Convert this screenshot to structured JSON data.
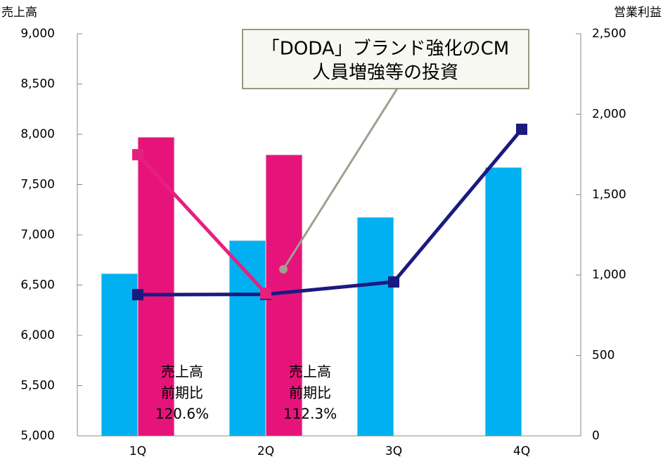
{
  "chart_data": {
    "type": "bar",
    "y_label": "売上高",
    "y2_label": "営業利益",
    "categories": [
      "1Q",
      "2Q",
      "3Q",
      "4Q"
    ],
    "series": [
      {
        "type": "bar",
        "color": "#00b0f0",
        "values": [
          6615,
          6944,
          7175,
          7671
        ]
      },
      {
        "type": "bar",
        "color": "#e6147a",
        "values": [
          7972,
          7797,
          null,
          null
        ]
      },
      {
        "type": "line",
        "axis": "y2",
        "color": "#1a1a80",
        "values": [
          878,
          880,
          957,
          1906
        ]
      },
      {
        "type": "line",
        "axis": "y2",
        "color": "#e6207f",
        "values": [
          1748,
          887,
          null,
          null
        ]
      }
    ],
    "ylim": [
      5000,
      9000
    ],
    "yticks": [
      {
        "value": 5000,
        "label": "5,000"
      },
      {
        "value": 5500,
        "label": "5,500"
      },
      {
        "value": 6000,
        "label": "6,000"
      },
      {
        "value": 6500,
        "label": "6,500"
      },
      {
        "value": 7000,
        "label": "7,000"
      },
      {
        "value": 7500,
        "label": "7,500"
      },
      {
        "value": 8000,
        "label": "8,000"
      },
      {
        "value": 8500,
        "label": "8,500"
      },
      {
        "value": 9000,
        "label": "9,000"
      }
    ],
    "y2lim": [
      0,
      2500
    ],
    "y2ticks": [
      0,
      500,
      {
        "value": 1000,
        "label": "1,000"
      },
      {
        "value": 1500,
        "label": "1,500"
      },
      {
        "value": 2000,
        "label": "2,000"
      },
      {
        "value": 2500,
        "label": "2,500"
      }
    ],
    "annotations": [
      {
        "lines": [
          "「DODA」ブランド強化のCM",
          "人員増強等の投資"
        ]
      },
      {
        "lines": [
          "売上高",
          "前期比",
          "120.6%"
        ]
      },
      {
        "lines": [
          "売上高",
          "前期比",
          "112.3%"
        ]
      }
    ]
  }
}
